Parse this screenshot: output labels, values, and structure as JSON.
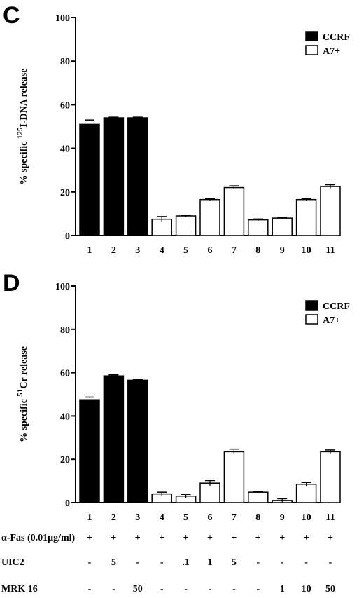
{
  "chart_data": [
    {
      "panel": "C",
      "type": "bar",
      "ylabel_pre": "% specific ",
      "ylabel_sup": "125",
      "ylabel_post": "I-DNA release",
      "ylim": [
        0,
        100
      ],
      "yticks": [
        "0",
        "20",
        "40",
        "60",
        "80",
        "100"
      ],
      "categories": [
        "1",
        "2",
        "3",
        "4",
        "5",
        "6",
        "7",
        "8",
        "9",
        "10",
        "11"
      ],
      "values": [
        51,
        54,
        54,
        7.5,
        9,
        16.5,
        22,
        7.2,
        8,
        16.5,
        22.5
      ],
      "errors": [
        2,
        0.3,
        0.3,
        1.2,
        0.4,
        0.4,
        0.8,
        0.4,
        0.3,
        0.4,
        0.8
      ],
      "bar_series": [
        "CCRF",
        "CCRF",
        "CCRF",
        "A7+",
        "A7+",
        "A7+",
        "A7+",
        "A7+",
        "A7+",
        "A7+",
        "A7+"
      ],
      "legend": [
        {
          "label": "CCRF",
          "color": "#000000"
        },
        {
          "label": "A7+",
          "color": "#ffffff"
        }
      ],
      "legend_position": "top-right"
    },
    {
      "panel": "D",
      "type": "bar",
      "ylabel_pre": "% specific ",
      "ylabel_sup": "51",
      "ylabel_post": "Cr release",
      "ylim": [
        0,
        100
      ],
      "yticks": [
        "0",
        "20",
        "40",
        "60",
        "80",
        "100"
      ],
      "categories": [
        "1",
        "2",
        "3",
        "4",
        "5",
        "6",
        "7",
        "8",
        "9",
        "10",
        "11"
      ],
      "values": [
        47.5,
        58.5,
        56.5,
        4,
        3,
        9,
        23.5,
        4.8,
        1,
        8.5,
        23.5
      ],
      "errors": [
        1.2,
        0.5,
        0.3,
        0.8,
        0.8,
        1.2,
        1.2,
        0.2,
        0.8,
        0.8,
        0.8
      ],
      "bar_series": [
        "CCRF",
        "CCRF",
        "CCRF",
        "A7+",
        "A7+",
        "A7+",
        "A7+",
        "A7+",
        "A7+",
        "A7+",
        "A7+"
      ],
      "legend": [
        {
          "label": "CCRF",
          "color": "#000000"
        },
        {
          "label": "A7+",
          "color": "#ffffff"
        }
      ],
      "legend_position": "top-right"
    }
  ],
  "treatment_rows": [
    {
      "label": "α-Fas (0.01μg/ml)",
      "values": [
        "+",
        "+",
        "+",
        "+",
        "+",
        "+",
        "+",
        "+",
        "+",
        "+",
        "+"
      ]
    },
    {
      "label": "UIC2",
      "values": [
        "-",
        "5",
        "-",
        "-",
        ".1",
        "1",
        "5",
        "-",
        "-",
        "-",
        "-"
      ]
    },
    {
      "label": "MRK 16",
      "values": [
        "-",
        "-",
        "50",
        "-",
        "-",
        "-",
        "-",
        "-",
        "1",
        "10",
        "50"
      ]
    }
  ]
}
